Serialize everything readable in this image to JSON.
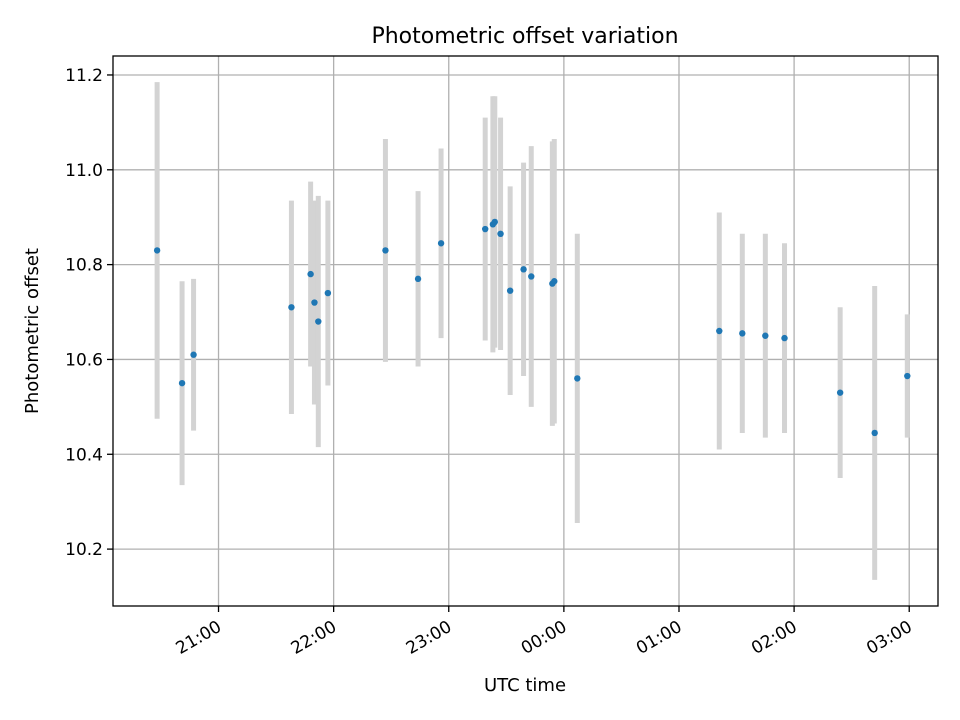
{
  "chart_data": {
    "type": "scatter",
    "title": "Photometric offset variation",
    "xlabel": "UTC time",
    "ylabel": "Photometric offset",
    "x_unit": "UTC",
    "xlim": [
      "20:05",
      "03:15"
    ],
    "ylim": [
      10.08,
      11.24
    ],
    "x_ticks": [
      "21:00",
      "22:00",
      "23:00",
      "00:00",
      "01:00",
      "02:00",
      "03:00"
    ],
    "y_ticks": [
      10.2,
      10.4,
      10.6,
      10.8,
      11.0,
      11.2
    ],
    "grid": true,
    "colors": {
      "points": "#1f77b4",
      "errorbars": "#d3d3d3",
      "grid": "#b0b0b0"
    },
    "series": [
      {
        "points": [
          {
            "time": "20:28",
            "y": 10.83,
            "err": 0.355
          },
          {
            "time": "20:41",
            "y": 10.55,
            "err": 0.215
          },
          {
            "time": "20:47",
            "y": 10.61,
            "err": 0.16
          },
          {
            "time": "21:38",
            "y": 10.71,
            "err": 0.225
          },
          {
            "time": "21:48",
            "y": 10.78,
            "err": 0.195
          },
          {
            "time": "21:50",
            "y": 10.72,
            "err": 0.215
          },
          {
            "time": "21:52",
            "y": 10.68,
            "err": 0.265
          },
          {
            "time": "21:57",
            "y": 10.74,
            "err": 0.195
          },
          {
            "time": "22:27",
            "y": 10.83,
            "err": 0.235
          },
          {
            "time": "22:44",
            "y": 10.77,
            "err": 0.185
          },
          {
            "time": "22:56",
            "y": 10.845,
            "err": 0.2
          },
          {
            "time": "23:19",
            "y": 10.875,
            "err": 0.235
          },
          {
            "time": "23:23",
            "y": 10.885,
            "err": 0.27
          },
          {
            "time": "23:24",
            "y": 10.89,
            "err": 0.265
          },
          {
            "time": "23:27",
            "y": 10.865,
            "err": 0.245
          },
          {
            "time": "23:32",
            "y": 10.745,
            "err": 0.22
          },
          {
            "time": "23:39",
            "y": 10.79,
            "err": 0.225
          },
          {
            "time": "23:43",
            "y": 10.775,
            "err": 0.275
          },
          {
            "time": "23:54",
            "y": 10.76,
            "err": 0.3
          },
          {
            "time": "23:55",
            "y": 10.765,
            "err": 0.3
          },
          {
            "time": "00:07",
            "y": 10.56,
            "err": 0.305
          },
          {
            "time": "01:21",
            "y": 10.66,
            "err": 0.25
          },
          {
            "time": "01:33",
            "y": 10.655,
            "err": 0.21
          },
          {
            "time": "01:45",
            "y": 10.65,
            "err": 0.215
          },
          {
            "time": "01:55",
            "y": 10.645,
            "err": 0.2
          },
          {
            "time": "02:24",
            "y": 10.53,
            "err": 0.18
          },
          {
            "time": "02:42",
            "y": 10.445,
            "err": 0.31
          },
          {
            "time": "02:59",
            "y": 10.565,
            "err": 0.13
          }
        ]
      }
    ]
  }
}
